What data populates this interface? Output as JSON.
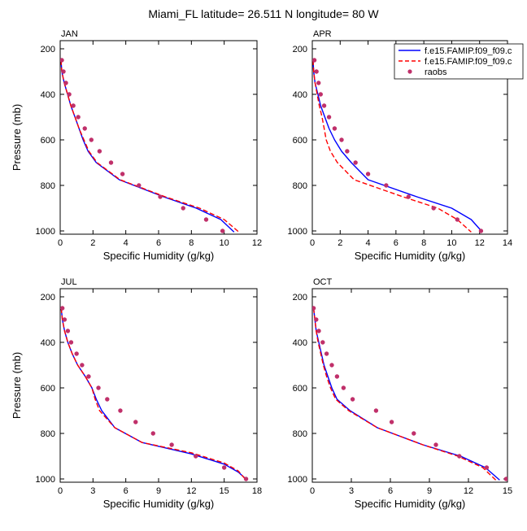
{
  "title": "Miami_FL  latitude= 26.511 N longitude= 80 W",
  "legend": {
    "placement": "top-right",
    "entries": [
      {
        "label": "f.e15.FAMIP.f09_f09.c",
        "color": "#0000ff",
        "style": "solid"
      },
      {
        "label": "f.e15.FAMIP.f09_f09.c",
        "color": "#ff0000",
        "style": "dashed"
      },
      {
        "label": "raobs",
        "color": "#c0306a",
        "style": "marker"
      }
    ]
  },
  "chart_data": [
    {
      "type": "line",
      "panel_label": "JAN",
      "xlabel": "Specific Humidity (g/kg)",
      "ylabel": "Pressure (mb)",
      "xlim": [
        0,
        12
      ],
      "ylim": [
        1000,
        200
      ],
      "x_ticks": [
        "0",
        "2",
        "4",
        "6",
        "8",
        "10",
        "12"
      ],
      "y_ticks": [
        "200",
        "400",
        "600",
        "800",
        "1000"
      ],
      "series": [
        {
          "name": "f.e15.FAMIP.f09_f09.c",
          "color": "#0000ff",
          "dash": false,
          "points": [
            [
              0.05,
              250
            ],
            [
              0.1,
              300
            ],
            [
              0.25,
              350
            ],
            [
              0.45,
              400
            ],
            [
              0.65,
              450
            ],
            [
              0.9,
              500
            ],
            [
              1.15,
              550
            ],
            [
              1.4,
              600
            ],
            [
              1.7,
              650
            ],
            [
              2.2,
              700
            ],
            [
              3.6,
              775
            ],
            [
              6.3,
              850
            ],
            [
              8.3,
              900
            ],
            [
              9.8,
              950
            ],
            [
              10.6,
              1005
            ]
          ]
        },
        {
          "name": "f.e15.FAMIP.f09_f09.c",
          "color": "#ff0000",
          "dash": true,
          "points": [
            [
              0.05,
              250
            ],
            [
              0.1,
              300
            ],
            [
              0.25,
              350
            ],
            [
              0.45,
              400
            ],
            [
              0.65,
              450
            ],
            [
              0.9,
              500
            ],
            [
              1.15,
              550
            ],
            [
              1.45,
              600
            ],
            [
              1.75,
              650
            ],
            [
              2.25,
              700
            ],
            [
              3.65,
              775
            ],
            [
              6.4,
              850
            ],
            [
              8.5,
              900
            ],
            [
              10.0,
              950
            ],
            [
              10.9,
              1005
            ]
          ]
        }
      ],
      "markers": {
        "name": "raobs",
        "color": "#c0306a",
        "points": [
          [
            0.1,
            250
          ],
          [
            0.2,
            300
          ],
          [
            0.35,
            350
          ],
          [
            0.55,
            400
          ],
          [
            0.8,
            450
          ],
          [
            1.1,
            500
          ],
          [
            1.5,
            550
          ],
          [
            1.9,
            600
          ],
          [
            2.4,
            650
          ],
          [
            3.1,
            700
          ],
          [
            3.8,
            750
          ],
          [
            4.8,
            800
          ],
          [
            6.1,
            850
          ],
          [
            7.5,
            900
          ],
          [
            8.9,
            950
          ],
          [
            9.9,
            1000
          ]
        ]
      }
    },
    {
      "type": "line",
      "panel_label": "APR",
      "xlabel": "Specific Humidity (g/kg)",
      "ylabel": "",
      "xlim": [
        0,
        14
      ],
      "ylim": [
        1000,
        200
      ],
      "x_ticks": [
        "0",
        "2",
        "4",
        "6",
        "8",
        "10",
        "12",
        "14"
      ],
      "y_ticks": [
        "200",
        "400",
        "600",
        "800",
        "1000"
      ],
      "series": [
        {
          "name": "f.e15.FAMIP.f09_f09.c",
          "color": "#0000ff",
          "dash": false,
          "points": [
            [
              0.05,
              250
            ],
            [
              0.1,
              300
            ],
            [
              0.2,
              350
            ],
            [
              0.4,
              400
            ],
            [
              0.6,
              450
            ],
            [
              0.9,
              500
            ],
            [
              1.2,
              550
            ],
            [
              1.6,
              600
            ],
            [
              2.1,
              650
            ],
            [
              2.8,
              700
            ],
            [
              4.0,
              775
            ],
            [
              7.5,
              850
            ],
            [
              10.0,
              900
            ],
            [
              11.4,
              950
            ],
            [
              12.2,
              1005
            ]
          ]
        },
        {
          "name": "f.e15.FAMIP.f09_f09.c",
          "color": "#ff0000",
          "dash": true,
          "points": [
            [
              0.05,
              250
            ],
            [
              0.1,
              300
            ],
            [
              0.2,
              350
            ],
            [
              0.35,
              400
            ],
            [
              0.5,
              450
            ],
            [
              0.7,
              500
            ],
            [
              0.85,
              550
            ],
            [
              1.0,
              600
            ],
            [
              1.3,
              650
            ],
            [
              1.8,
              700
            ],
            [
              3.0,
              775
            ],
            [
              6.5,
              850
            ],
            [
              9.0,
              900
            ],
            [
              10.4,
              950
            ],
            [
              11.4,
              1005
            ]
          ]
        }
      ],
      "markers": {
        "name": "raobs",
        "color": "#c0306a",
        "points": [
          [
            0.15,
            250
          ],
          [
            0.3,
            300
          ],
          [
            0.45,
            350
          ],
          [
            0.6,
            400
          ],
          [
            0.85,
            450
          ],
          [
            1.2,
            500
          ],
          [
            1.6,
            550
          ],
          [
            2.1,
            600
          ],
          [
            2.5,
            650
          ],
          [
            3.1,
            700
          ],
          [
            4.0,
            750
          ],
          [
            5.3,
            800
          ],
          [
            6.9,
            850
          ],
          [
            8.7,
            900
          ],
          [
            10.4,
            950
          ],
          [
            12.1,
            1000
          ]
        ]
      }
    },
    {
      "type": "line",
      "panel_label": "JUL",
      "xlabel": "Specific Humidity (g/kg)",
      "ylabel": "Pressure (mb)",
      "xlim": [
        0,
        18
      ],
      "ylim": [
        1000,
        200
      ],
      "x_ticks": [
        "0",
        "3",
        "6",
        "9",
        "12",
        "15",
        "18"
      ],
      "y_ticks": [
        "200",
        "400",
        "600",
        "800",
        "1000"
      ],
      "series": [
        {
          "name": "f.e15.FAMIP.f09_f09.c",
          "color": "#0000ff",
          "dash": false,
          "points": [
            [
              0.1,
              250
            ],
            [
              0.2,
              300
            ],
            [
              0.4,
              350
            ],
            [
              0.7,
              400
            ],
            [
              1.1,
              450
            ],
            [
              1.6,
              500
            ],
            [
              2.3,
              550
            ],
            [
              2.9,
              600
            ],
            [
              3.3,
              650
            ],
            [
              3.8,
              700
            ],
            [
              5.0,
              775
            ],
            [
              7.5,
              840
            ],
            [
              12.0,
              890
            ],
            [
              15.0,
              935
            ],
            [
              16.3,
              970
            ],
            [
              17.1,
              1005
            ]
          ]
        },
        {
          "name": "f.e15.FAMIP.f09_f09.c",
          "color": "#ff0000",
          "dash": true,
          "points": [
            [
              0.1,
              250
            ],
            [
              0.2,
              300
            ],
            [
              0.4,
              350
            ],
            [
              0.7,
              400
            ],
            [
              1.1,
              450
            ],
            [
              1.6,
              500
            ],
            [
              2.3,
              550
            ],
            [
              2.9,
              600
            ],
            [
              3.2,
              650
            ],
            [
              3.6,
              700
            ],
            [
              5.0,
              775
            ],
            [
              7.5,
              840
            ],
            [
              12.0,
              885
            ],
            [
              15.0,
              930
            ],
            [
              16.3,
              965
            ],
            [
              17.0,
              1005
            ]
          ]
        }
      ],
      "markers": {
        "name": "raobs",
        "color": "#c0306a",
        "points": [
          [
            0.2,
            250
          ],
          [
            0.4,
            300
          ],
          [
            0.7,
            350
          ],
          [
            1.0,
            400
          ],
          [
            1.5,
            450
          ],
          [
            2.0,
            500
          ],
          [
            2.6,
            550
          ],
          [
            3.5,
            600
          ],
          [
            4.3,
            650
          ],
          [
            5.5,
            700
          ],
          [
            6.9,
            750
          ],
          [
            8.5,
            800
          ],
          [
            10.2,
            850
          ],
          [
            12.4,
            900
          ],
          [
            15.0,
            950
          ],
          [
            17.0,
            1000
          ]
        ]
      }
    },
    {
      "type": "line",
      "panel_label": "OCT",
      "xlabel": "Specific Humidity (g/kg)",
      "ylabel": "",
      "xlim": [
        0,
        15
      ],
      "ylim": [
        1000,
        200
      ],
      "x_ticks": [
        "0",
        "3",
        "6",
        "9",
        "12",
        "15"
      ],
      "y_ticks": [
        "200",
        "400",
        "600",
        "800",
        "1000"
      ],
      "series": [
        {
          "name": "f.e15.FAMIP.f09_f09.c",
          "color": "#0000ff",
          "dash": false,
          "points": [
            [
              0.1,
              250
            ],
            [
              0.2,
              300
            ],
            [
              0.3,
              350
            ],
            [
              0.5,
              400
            ],
            [
              0.7,
              450
            ],
            [
              0.9,
              500
            ],
            [
              1.2,
              550
            ],
            [
              1.5,
              600
            ],
            [
              1.9,
              650
            ],
            [
              2.9,
              700
            ],
            [
              5.0,
              775
            ],
            [
              8.5,
              850
            ],
            [
              11.4,
              900
            ],
            [
              13.3,
              950
            ],
            [
              14.4,
              1005
            ]
          ]
        },
        {
          "name": "f.e15.FAMIP.f09_f09.c",
          "color": "#ff0000",
          "dash": true,
          "points": [
            [
              0.1,
              250
            ],
            [
              0.2,
              300
            ],
            [
              0.3,
              350
            ],
            [
              0.45,
              400
            ],
            [
              0.65,
              450
            ],
            [
              0.85,
              500
            ],
            [
              1.1,
              550
            ],
            [
              1.4,
              600
            ],
            [
              1.8,
              650
            ],
            [
              2.8,
              700
            ],
            [
              5.0,
              775
            ],
            [
              8.5,
              850
            ],
            [
              11.2,
              900
            ],
            [
              13.1,
              950
            ],
            [
              14.1,
              1005
            ]
          ]
        }
      ],
      "markers": {
        "name": "raobs",
        "color": "#c0306a",
        "points": [
          [
            0.1,
            250
          ],
          [
            0.3,
            300
          ],
          [
            0.5,
            350
          ],
          [
            0.8,
            400
          ],
          [
            1.1,
            450
          ],
          [
            1.5,
            500
          ],
          [
            1.9,
            550
          ],
          [
            2.4,
            600
          ],
          [
            3.1,
            650
          ],
          [
            4.9,
            700
          ],
          [
            6.1,
            750
          ],
          [
            7.8,
            800
          ],
          [
            9.5,
            850
          ],
          [
            11.3,
            900
          ],
          [
            13.4,
            950
          ],
          [
            14.9,
            1000
          ]
        ]
      }
    }
  ]
}
